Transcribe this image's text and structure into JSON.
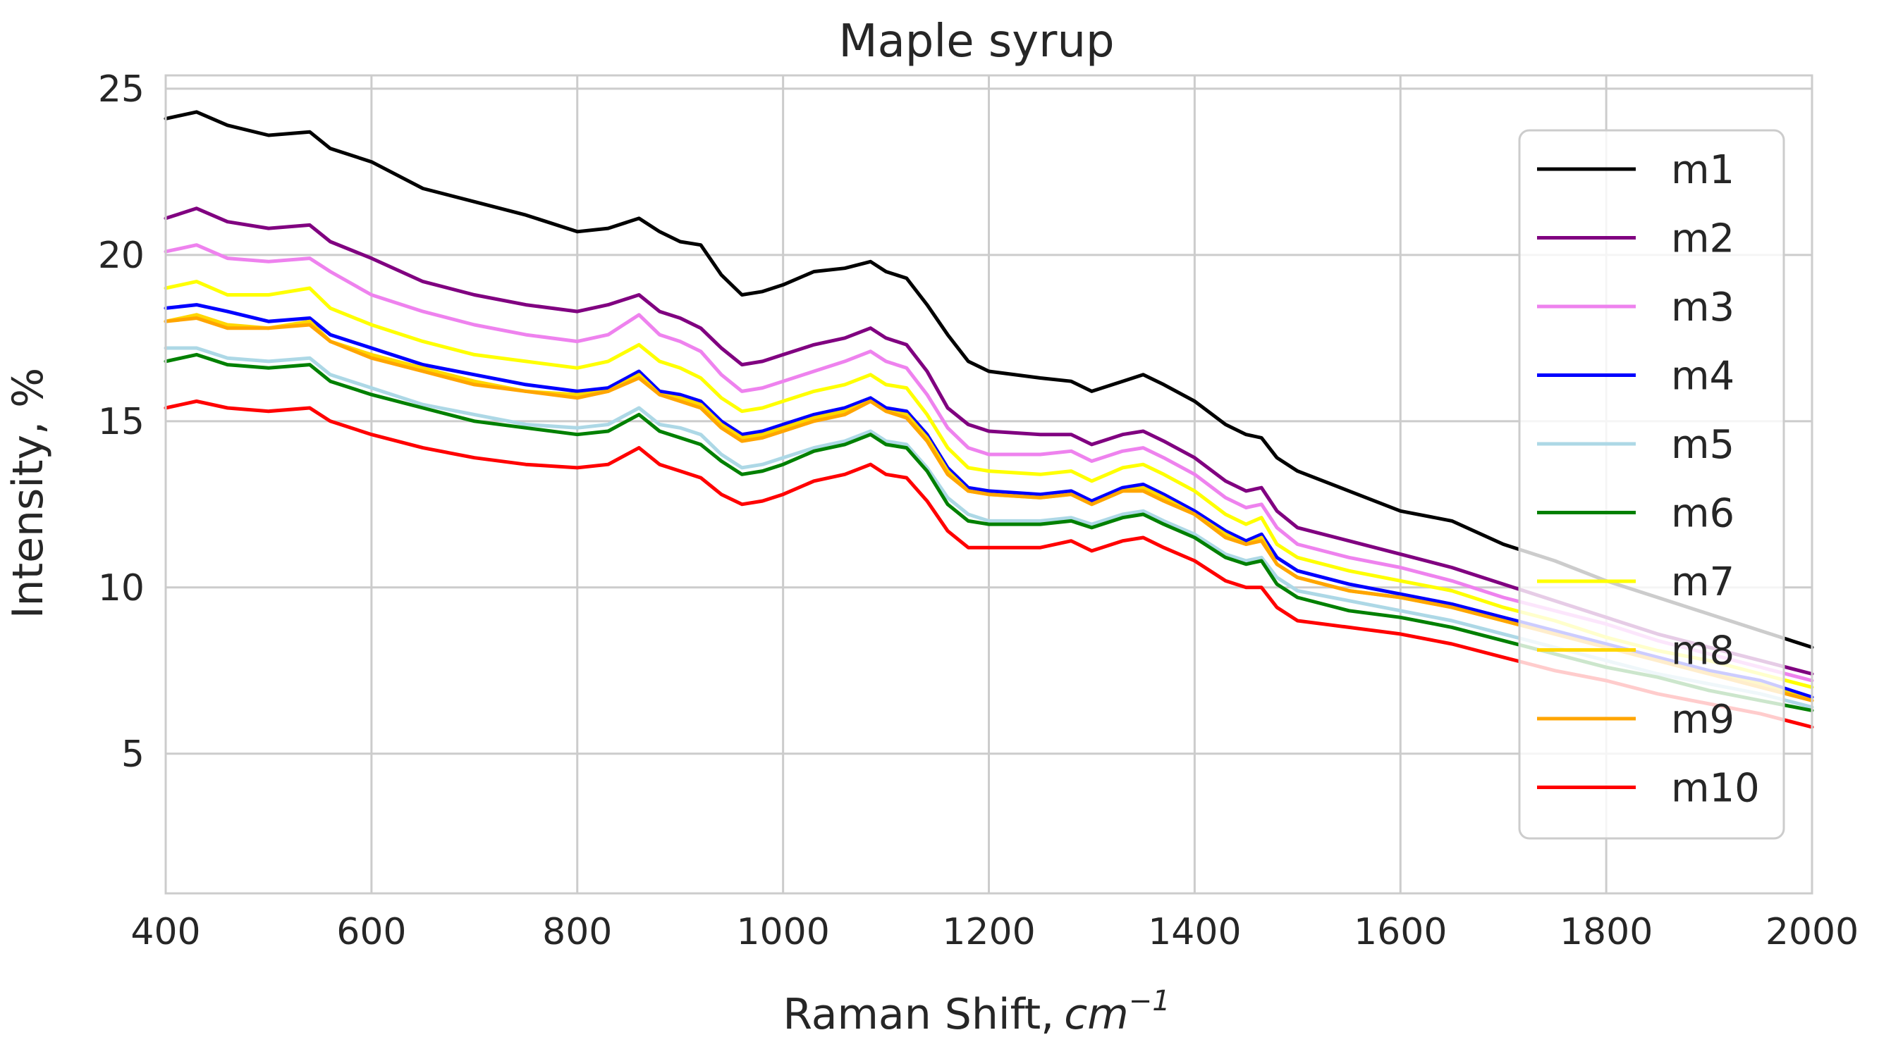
{
  "chart_data": {
    "type": "line",
    "title": "Maple syrup",
    "xlabel": "Raman Shift,",
    "xlabel_unit_base": "cm",
    "xlabel_unit_exp": "−1",
    "ylabel": "Intensity, %",
    "xlim": [
      400,
      2000
    ],
    "ylim": [
      0.8,
      25.4
    ],
    "xticks": [
      400,
      600,
      800,
      1000,
      1200,
      1400,
      1600,
      1800,
      2000
    ],
    "yticks": [
      5,
      10,
      15,
      20,
      25
    ],
    "grid": true,
    "legend_position": "right",
    "x": [
      400,
      430,
      460,
      500,
      540,
      560,
      600,
      650,
      700,
      750,
      800,
      830,
      860,
      880,
      900,
      920,
      940,
      960,
      980,
      1000,
      1030,
      1060,
      1085,
      1100,
      1120,
      1140,
      1160,
      1180,
      1200,
      1250,
      1280,
      1300,
      1330,
      1350,
      1370,
      1400,
      1430,
      1450,
      1465,
      1480,
      1500,
      1550,
      1600,
      1650,
      1700,
      1750,
      1800,
      1850,
      1900,
      1950,
      2000
    ],
    "series": [
      {
        "name": "m1",
        "color": "#000000",
        "values": [
          24.1,
          24.3,
          23.9,
          23.6,
          23.7,
          23.2,
          22.8,
          22.0,
          21.6,
          21.2,
          20.7,
          20.8,
          21.1,
          20.7,
          20.4,
          20.3,
          19.4,
          18.8,
          18.9,
          19.1,
          19.5,
          19.6,
          19.8,
          19.5,
          19.3,
          18.5,
          17.6,
          16.8,
          16.5,
          16.3,
          16.2,
          15.9,
          16.2,
          16.4,
          16.1,
          15.6,
          14.9,
          14.6,
          14.5,
          13.9,
          13.5,
          12.9,
          12.3,
          12.0,
          11.3,
          10.8,
          10.2,
          9.7,
          9.2,
          8.7,
          8.2
        ]
      },
      {
        "name": "m2",
        "color": "#800080",
        "values": [
          21.1,
          21.4,
          21.0,
          20.8,
          20.9,
          20.4,
          19.9,
          19.2,
          18.8,
          18.5,
          18.3,
          18.5,
          18.8,
          18.3,
          18.1,
          17.8,
          17.2,
          16.7,
          16.8,
          17.0,
          17.3,
          17.5,
          17.8,
          17.5,
          17.3,
          16.5,
          15.4,
          14.9,
          14.7,
          14.6,
          14.6,
          14.3,
          14.6,
          14.7,
          14.4,
          13.9,
          13.2,
          12.9,
          13.0,
          12.3,
          11.8,
          11.4,
          11.0,
          10.6,
          10.1,
          9.6,
          9.1,
          8.6,
          8.2,
          7.8,
          7.4
        ]
      },
      {
        "name": "m3",
        "color": "#ee82ee",
        "values": [
          20.1,
          20.3,
          19.9,
          19.8,
          19.9,
          19.5,
          18.8,
          18.3,
          17.9,
          17.6,
          17.4,
          17.6,
          18.2,
          17.6,
          17.4,
          17.1,
          16.4,
          15.9,
          16.0,
          16.2,
          16.5,
          16.8,
          17.1,
          16.8,
          16.6,
          15.8,
          14.8,
          14.2,
          14.0,
          14.0,
          14.1,
          13.8,
          14.1,
          14.2,
          13.9,
          13.4,
          12.7,
          12.4,
          12.5,
          11.8,
          11.3,
          10.9,
          10.6,
          10.2,
          9.7,
          9.3,
          8.9,
          8.4,
          8.0,
          7.6,
          7.2
        ]
      },
      {
        "name": "m4",
        "color": "#0000ff",
        "values": [
          18.4,
          18.5,
          18.3,
          18.0,
          18.1,
          17.6,
          17.2,
          16.7,
          16.4,
          16.1,
          15.9,
          16.0,
          16.5,
          15.9,
          15.8,
          15.6,
          15.0,
          14.6,
          14.7,
          14.9,
          15.2,
          15.4,
          15.7,
          15.4,
          15.3,
          14.6,
          13.6,
          13.0,
          12.9,
          12.8,
          12.9,
          12.6,
          13.0,
          13.1,
          12.8,
          12.3,
          11.7,
          11.4,
          11.6,
          10.9,
          10.5,
          10.1,
          9.8,
          9.5,
          9.1,
          8.7,
          8.3,
          7.9,
          7.5,
          7.2,
          6.7
        ]
      },
      {
        "name": "m5",
        "color": "#add8e6",
        "values": [
          17.2,
          17.2,
          16.9,
          16.8,
          16.9,
          16.4,
          16.0,
          15.5,
          15.2,
          14.9,
          14.8,
          14.9,
          15.4,
          14.9,
          14.8,
          14.6,
          14.0,
          13.6,
          13.7,
          13.9,
          14.2,
          14.4,
          14.7,
          14.4,
          14.3,
          13.6,
          12.7,
          12.2,
          12.0,
          12.0,
          12.1,
          11.9,
          12.2,
          12.3,
          12.0,
          11.6,
          11.0,
          10.8,
          10.9,
          10.3,
          9.9,
          9.6,
          9.3,
          9.0,
          8.6,
          8.2,
          7.8,
          7.4,
          7.1,
          6.8,
          6.4
        ]
      },
      {
        "name": "m6",
        "color": "#008000",
        "values": [
          16.8,
          17.0,
          16.7,
          16.6,
          16.7,
          16.2,
          15.8,
          15.4,
          15.0,
          14.8,
          14.6,
          14.7,
          15.2,
          14.7,
          14.5,
          14.3,
          13.8,
          13.4,
          13.5,
          13.7,
          14.1,
          14.3,
          14.6,
          14.3,
          14.2,
          13.5,
          12.5,
          12.0,
          11.9,
          11.9,
          12.0,
          11.8,
          12.1,
          12.2,
          11.9,
          11.5,
          10.9,
          10.7,
          10.8,
          10.1,
          9.7,
          9.3,
          9.1,
          8.8,
          8.4,
          8.0,
          7.6,
          7.3,
          6.9,
          6.6,
          6.3
        ]
      },
      {
        "name": "m7",
        "color": "#ffff00",
        "values": [
          19.0,
          19.2,
          18.8,
          18.8,
          19.0,
          18.4,
          17.9,
          17.4,
          17.0,
          16.8,
          16.6,
          16.8,
          17.3,
          16.8,
          16.6,
          16.3,
          15.7,
          15.3,
          15.4,
          15.6,
          15.9,
          16.1,
          16.4,
          16.1,
          16.0,
          15.2,
          14.2,
          13.6,
          13.5,
          13.4,
          13.5,
          13.2,
          13.6,
          13.7,
          13.4,
          12.9,
          12.2,
          11.9,
          12.1,
          11.3,
          10.9,
          10.5,
          10.2,
          9.9,
          9.4,
          9.0,
          8.5,
          8.1,
          7.8,
          7.4,
          7.0
        ]
      },
      {
        "name": "m8",
        "color": "#ffd700",
        "values": [
          18.0,
          18.2,
          17.9,
          17.8,
          18.0,
          17.4,
          17.0,
          16.6,
          16.2,
          15.9,
          15.8,
          15.9,
          16.4,
          15.8,
          15.7,
          15.5,
          14.9,
          14.5,
          14.6,
          14.8,
          15.1,
          15.3,
          15.6,
          15.3,
          15.2,
          14.5,
          13.5,
          12.9,
          12.8,
          12.7,
          12.8,
          12.5,
          12.9,
          13.0,
          12.7,
          12.2,
          11.6,
          11.3,
          11.5,
          10.7,
          10.3,
          9.9,
          9.7,
          9.4,
          9.0,
          8.6,
          8.2,
          7.8,
          7.4,
          7.1,
          6.6
        ]
      },
      {
        "name": "m9",
        "color": "#ffa500",
        "values": [
          18.0,
          18.1,
          17.8,
          17.8,
          17.9,
          17.4,
          16.9,
          16.5,
          16.1,
          15.9,
          15.7,
          15.9,
          16.3,
          15.8,
          15.6,
          15.4,
          14.8,
          14.4,
          14.5,
          14.7,
          15.0,
          15.2,
          15.6,
          15.3,
          15.1,
          14.4,
          13.4,
          12.9,
          12.8,
          12.7,
          12.8,
          12.5,
          12.9,
          12.9,
          12.6,
          12.2,
          11.5,
          11.3,
          11.4,
          10.7,
          10.3,
          9.9,
          9.7,
          9.4,
          9.0,
          8.6,
          8.2,
          7.8,
          7.4,
          7.0,
          6.6
        ]
      },
      {
        "name": "m10",
        "color": "#ff0000",
        "values": [
          15.4,
          15.6,
          15.4,
          15.3,
          15.4,
          15.0,
          14.6,
          14.2,
          13.9,
          13.7,
          13.6,
          13.7,
          14.2,
          13.7,
          13.5,
          13.3,
          12.8,
          12.5,
          12.6,
          12.8,
          13.2,
          13.4,
          13.7,
          13.4,
          13.3,
          12.6,
          11.7,
          11.2,
          11.2,
          11.2,
          11.4,
          11.1,
          11.4,
          11.5,
          11.2,
          10.8,
          10.2,
          10.0,
          10.0,
          9.4,
          9.0,
          8.8,
          8.6,
          8.3,
          7.9,
          7.5,
          7.2,
          6.8,
          6.5,
          6.2,
          5.8
        ]
      }
    ]
  }
}
